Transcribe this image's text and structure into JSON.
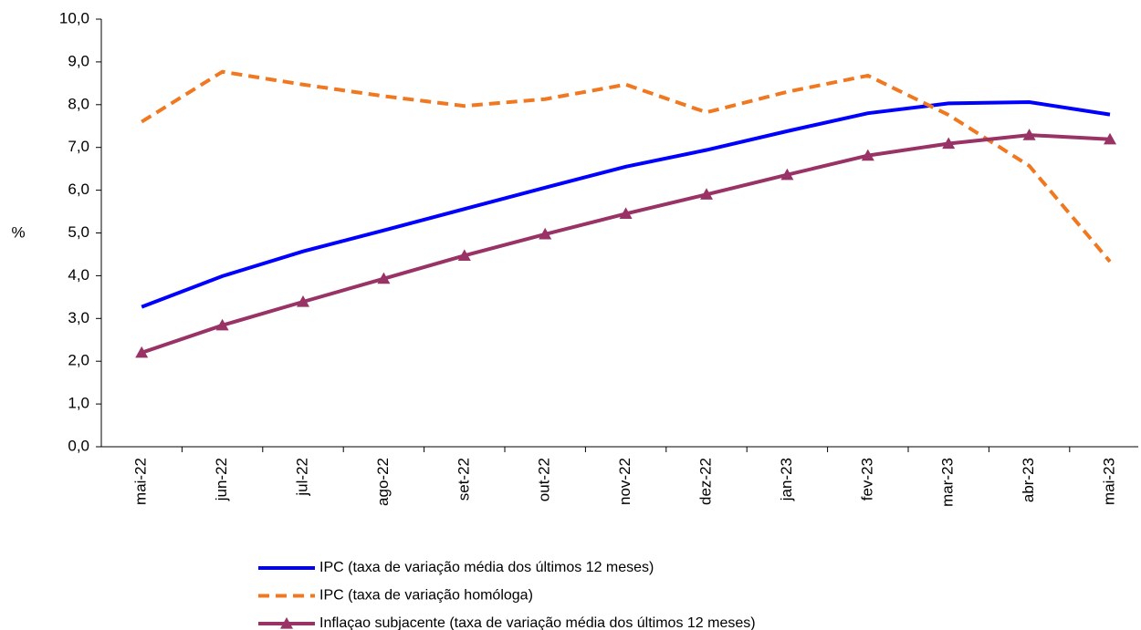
{
  "chart_data": {
    "type": "line",
    "y_label": "%",
    "categories": [
      "mai-22",
      "jun-22",
      "jul-22",
      "ago-22",
      "set-22",
      "out-22",
      "nov-22",
      "dez-22",
      "jan-23",
      "fev-23",
      "mar-23",
      "abr-23",
      "mai-23"
    ],
    "series": [
      {
        "name": "IPC (taxa de variação média dos últimos 12 meses)",
        "color": "#0000ff",
        "dashed": false,
        "marker": null,
        "values": [
          3.27,
          3.99,
          4.57,
          5.06,
          5.56,
          6.06,
          6.55,
          6.94,
          7.38,
          7.8,
          8.03,
          8.06,
          7.77
        ]
      },
      {
        "name": "IPC (taxa de variação homóloga)",
        "color": "#f07820",
        "dashed": true,
        "marker": null,
        "values": [
          7.6,
          8.77,
          8.47,
          8.2,
          7.97,
          8.13,
          8.47,
          7.82,
          8.3,
          8.68,
          7.76,
          6.57,
          4.33
        ]
      },
      {
        "name": "Inflaçao subjacente (taxa de variação média dos últimos 12 meses)",
        "color": "#993366",
        "dashed": false,
        "marker": "triangle",
        "values": [
          2.2,
          2.84,
          3.39,
          3.93,
          4.47,
          4.97,
          5.45,
          5.9,
          6.36,
          6.81,
          7.09,
          7.29,
          7.19
        ]
      }
    ],
    "ylim": [
      0,
      10
    ],
    "yticks": [
      {
        "value": 0,
        "label": "0,0"
      },
      {
        "value": 1,
        "label": "1,0"
      },
      {
        "value": 2,
        "label": "2,0"
      },
      {
        "value": 3,
        "label": "3,0"
      },
      {
        "value": 4,
        "label": "4,0"
      },
      {
        "value": 5,
        "label": "5,0"
      },
      {
        "value": 6,
        "label": "6,0"
      },
      {
        "value": 7,
        "label": "7,0"
      },
      {
        "value": 8,
        "label": "8,0"
      },
      {
        "value": 9,
        "label": "9,0"
      },
      {
        "value": 10,
        "label": "10,0"
      }
    ],
    "legend": "bottom"
  }
}
